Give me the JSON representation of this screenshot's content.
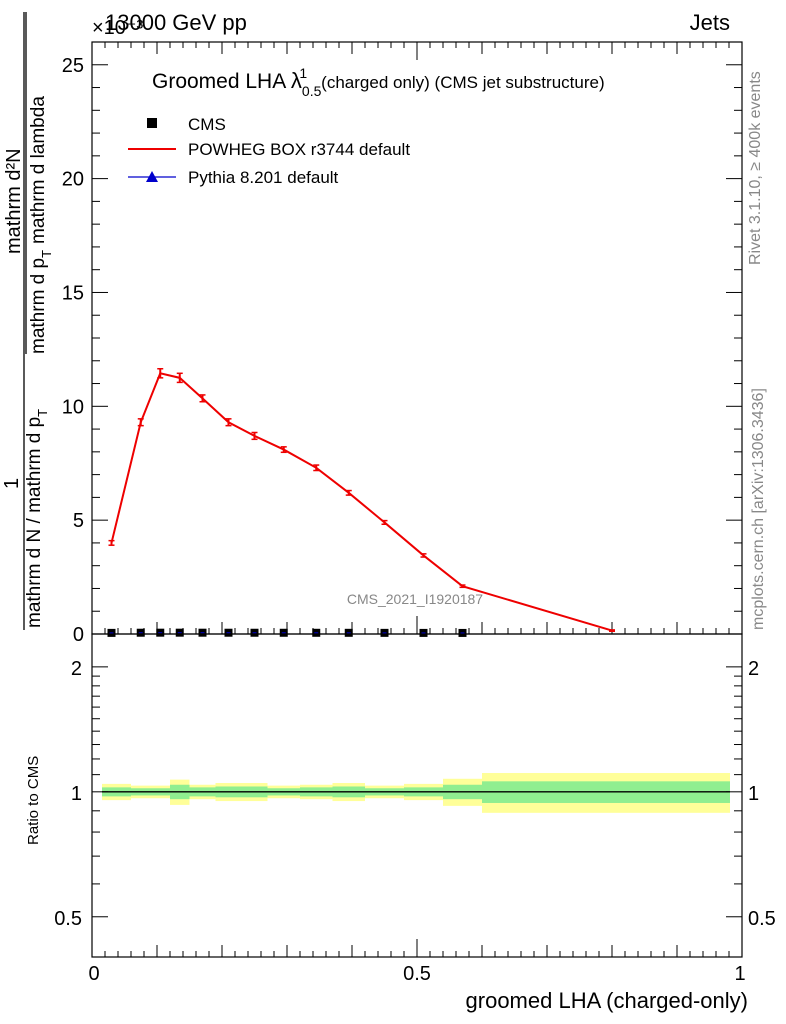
{
  "header": {
    "energy_label": "13000 GeV pp",
    "category_label": "Jets",
    "exponent_label": "×10⁻³"
  },
  "side_labels": {
    "rivet": "Rivet 3.1.10, ≥ 400k events",
    "mcplots": "mcplots.cern.ch [arXiv:1306.3436]"
  },
  "watermark": "CMS_2021_I1920187",
  "ylabel_main": {
    "numerator_one": "1",
    "numerator": "mathrm d²N",
    "denominator_left": "mathrm d N / mathrm d p",
    "denominator_right": "mathrm d p",
    "denominator_tail": "mathrm d lambda",
    "sub_t": "T"
  },
  "ylabel_ratio": "Ratio to CMS",
  "xlabel": "groomed LHA (charged-only)",
  "colors": {
    "powheg": "#ee0000",
    "pythia": "#0000cc",
    "data": "#000000",
    "band_inner": "#90ee90",
    "band_outer": "#ffff99"
  },
  "chart_data": {
    "type": "line",
    "title": "Groomed LHA λ¹₀.₅ (charged only) (CMS jet substructure)",
    "title_parts": {
      "main": "Groomed LHA ",
      "lambda": "λ",
      "sup": "1",
      "sub": "0.5",
      "rest": "(charged only) (CMS jet substructure)"
    },
    "xlim": [
      0,
      1
    ],
    "ylim": [
      0,
      26
    ],
    "y_scale_note": "×10⁻³",
    "x_ticks": [
      0,
      0.5,
      1
    ],
    "x_tick_labels": [
      "0",
      "0.5",
      "1"
    ],
    "y_ticks": [
      0,
      5,
      10,
      15,
      20,
      25
    ],
    "y_tick_labels": [
      "0",
      "5",
      "10",
      "15",
      "20",
      "25"
    ],
    "legend": {
      "placement": "top-left",
      "entries": [
        "CMS",
        "POWHEG BOX r3744 default",
        "Pythia 8.201 default"
      ]
    },
    "series": [
      {
        "name": "POWHEG BOX r3744 default",
        "x": [
          0.03,
          0.075,
          0.105,
          0.135,
          0.17,
          0.21,
          0.25,
          0.295,
          0.345,
          0.395,
          0.45,
          0.51,
          0.57,
          0.8
        ],
        "y": [
          4.0,
          9.3,
          11.45,
          11.25,
          10.35,
          9.3,
          8.7,
          8.1,
          7.3,
          6.2,
          4.9,
          3.45,
          2.1,
          0.15
        ],
        "yerr": [
          0.1,
          0.15,
          0.2,
          0.2,
          0.15,
          0.15,
          0.15,
          0.12,
          0.12,
          0.1,
          0.08,
          0.07,
          0.05,
          0.03
        ]
      },
      {
        "name": "CMS",
        "x": [
          0.03,
          0.075,
          0.105,
          0.135,
          0.17,
          0.21,
          0.25,
          0.295,
          0.345,
          0.395,
          0.45,
          0.51,
          0.57
        ],
        "y": [
          0.005,
          0.012,
          0.014,
          0.014,
          0.013,
          0.012,
          0.011,
          0.01,
          0.009,
          0.008,
          0.006,
          0.004,
          0.003
        ]
      },
      {
        "name": "Pythia 8.201 default",
        "x": [],
        "y": []
      }
    ],
    "ratio": {
      "ylabel": "Ratio to CMS",
      "ylim": [
        0.4,
        2.4
      ],
      "y_ticks": [
        0.5,
        1,
        2
      ],
      "y_tick_labels": [
        "0.5",
        "1",
        "2"
      ],
      "bins": [
        {
          "lo": 0.0,
          "hi": 0.06,
          "inner": 0.025,
          "outer": 0.045
        },
        {
          "lo": 0.06,
          "hi": 0.12,
          "inner": 0.02,
          "outer": 0.035
        },
        {
          "lo": 0.12,
          "hi": 0.15,
          "inner": 0.04,
          "outer": 0.07
        },
        {
          "lo": 0.15,
          "hi": 0.19,
          "inner": 0.025,
          "outer": 0.04
        },
        {
          "lo": 0.19,
          "hi": 0.27,
          "inner": 0.03,
          "outer": 0.05
        },
        {
          "lo": 0.27,
          "hi": 0.32,
          "inner": 0.02,
          "outer": 0.035
        },
        {
          "lo": 0.32,
          "hi": 0.37,
          "inner": 0.025,
          "outer": 0.04
        },
        {
          "lo": 0.37,
          "hi": 0.42,
          "inner": 0.03,
          "outer": 0.05
        },
        {
          "lo": 0.42,
          "hi": 0.48,
          "inner": 0.02,
          "outer": 0.035
        },
        {
          "lo": 0.48,
          "hi": 0.54,
          "inner": 0.025,
          "outer": 0.045
        },
        {
          "lo": 0.54,
          "hi": 0.6,
          "inner": 0.04,
          "outer": 0.075
        },
        {
          "lo": 0.6,
          "hi": 1.0,
          "inner": 0.06,
          "outer": 0.11
        }
      ]
    }
  }
}
